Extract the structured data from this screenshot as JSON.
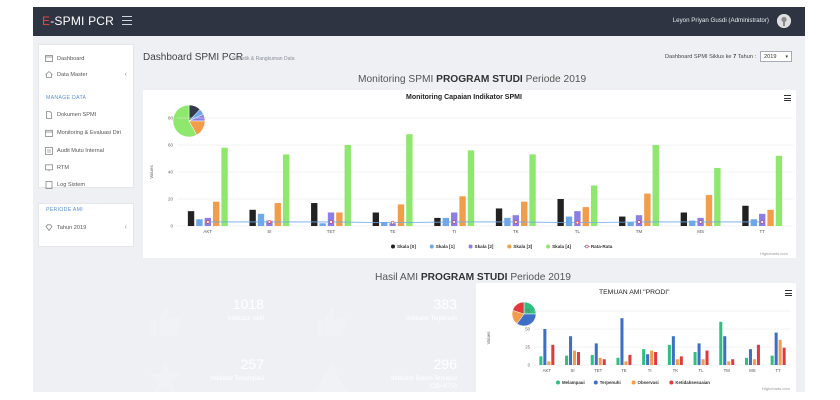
{
  "app": {
    "brand_prefix": "E",
    "brand_rest": "-SPMI PCR",
    "user": "Leyon Priyan Gusdi (Administrator)"
  },
  "sidebar": {
    "items": [
      {
        "label": "Dashboard"
      },
      {
        "label": "Data Master"
      }
    ],
    "manage_label": "MANAGE DATA",
    "manage_items": [
      {
        "label": "Dokumen SPMI"
      },
      {
        "label": "Monitoring & Evaluasi Diri"
      },
      {
        "label": "Audit Mutu Internal"
      },
      {
        "label": "RTM"
      },
      {
        "label": "Log Sistem"
      }
    ],
    "period_label": "PERIODE AMI",
    "period_item": "Tahun 2019"
  },
  "header": {
    "title": "Dashboard SPMI PCR",
    "subtitle": "Statistik & Rangkuman Data",
    "cycle_prefix": "Dashboard SPMI Siklus ke",
    "cycle_number": "7",
    "cycle_suffix": "Tahun :",
    "year": "2019"
  },
  "monitoring": {
    "head_pre": "Monitoring SPMI",
    "head_bold": "PROGRAM STUDI",
    "head_post": "Periode 2019",
    "credit": "Highcharts.com"
  },
  "hasil": {
    "head_pre": "Hasil AMI",
    "head_bold": "PROGRAM STUDI",
    "head_post": "Periode 2019"
  },
  "tiles": [
    {
      "value": "1018",
      "label": "Indikator Aktif",
      "color": "#3b8fdc"
    },
    {
      "value": "383",
      "label": "Indikator Terpenuhi",
      "color": "#2fc07f"
    },
    {
      "value": "257",
      "label": "Indikator Terlampaui",
      "color": "#8e46b9"
    },
    {
      "value": "296",
      "label": "Indikator Belum Tercapai (OB+KTS)",
      "color": "#e8485a"
    }
  ],
  "chart_data": [
    {
      "type": "bar",
      "title": "Monitoring Capaian Indikator SPMI",
      "ylabel": "Values",
      "ylim": [
        0,
        80
      ],
      "yticks": [
        0,
        20,
        40,
        60,
        80
      ],
      "categories": [
        "AKT",
        "SI",
        "TET",
        "TE",
        "TI",
        "TK",
        "TL",
        "TM",
        "MS",
        "TT"
      ],
      "series": [
        {
          "name": "Skala [0]",
          "color": "#222222",
          "values": [
            11,
            12,
            17,
            10,
            6,
            13,
            20,
            7,
            10,
            15
          ]
        },
        {
          "name": "Skala [1]",
          "color": "#6fa8e8",
          "values": [
            5,
            9,
            2,
            3,
            6,
            6,
            7,
            3,
            4,
            5
          ]
        },
        {
          "name": "Skala [2]",
          "color": "#8b7fe6",
          "values": [
            6,
            4,
            10,
            2,
            10,
            8,
            11,
            8,
            6,
            9
          ]
        },
        {
          "name": "Skala [3]",
          "color": "#f39c4a",
          "values": [
            18,
            17,
            10,
            16,
            22,
            18,
            14,
            24,
            23,
            12
          ]
        },
        {
          "name": "Skala [4]",
          "color": "#8ee86e",
          "values": [
            58,
            53,
            60,
            68,
            56,
            53,
            30,
            60,
            43,
            52
          ]
        }
      ],
      "line": {
        "name": "Rata-Rata",
        "color": "#6fa8e8",
        "values": [
          3,
          3,
          3,
          2.5,
          3,
          3,
          2.5,
          3,
          3,
          3
        ]
      },
      "legend": "bottom",
      "pie_inset": {
        "slices": [
          {
            "name": "Skala [0]",
            "value": 12,
            "color": "#333a4a"
          },
          {
            "name": "Skala [1]",
            "value": 6,
            "color": "#6fa8e8"
          },
          {
            "name": "Skala [2]",
            "value": 7,
            "color": "#8b7fe6"
          },
          {
            "name": "Skala [3]",
            "value": 17,
            "color": "#f39c4a"
          },
          {
            "name": "Skala [4]",
            "value": 58,
            "color": "#8ee86e"
          }
        ]
      }
    },
    {
      "type": "bar",
      "title": "TEMUAN AMI \"PRODI\"",
      "ylabel": "Values",
      "ylim": [
        0,
        75
      ],
      "yticks": [
        0,
        25,
        50,
        75
      ],
      "categories": [
        "AKT",
        "SI",
        "TET",
        "TE",
        "TI",
        "TK",
        "TL",
        "TM",
        "MS",
        "TT"
      ],
      "series": [
        {
          "name": "Melampaui",
          "color": "#2fc07f",
          "values": [
            12,
            13,
            14,
            10,
            22,
            28,
            18,
            60,
            10,
            13
          ]
        },
        {
          "name": "Terpenuhi",
          "color": "#3d6fc6",
          "values": [
            50,
            40,
            30,
            65,
            15,
            40,
            30,
            40,
            22,
            45
          ]
        },
        {
          "name": "Observasi",
          "color": "#f39c4a",
          "values": [
            5,
            20,
            10,
            5,
            20,
            8,
            8,
            5,
            8,
            35
          ]
        },
        {
          "name": "Ketidaksesuaian",
          "color": "#e0393e",
          "values": [
            28,
            18,
            8,
            14,
            18,
            12,
            20,
            8,
            28,
            24
          ]
        }
      ],
      "legend": "bottom",
      "pie_inset": {
        "slices": [
          {
            "name": "Melampaui",
            "value": 25,
            "color": "#2fc07f"
          },
          {
            "name": "Terpenuhi",
            "value": 35,
            "color": "#3d6fc6"
          },
          {
            "name": "Observasi",
            "value": 20,
            "color": "#f39c4a"
          },
          {
            "name": "Ketidaksesuaian",
            "value": 20,
            "color": "#e0393e"
          }
        ]
      }
    }
  ]
}
